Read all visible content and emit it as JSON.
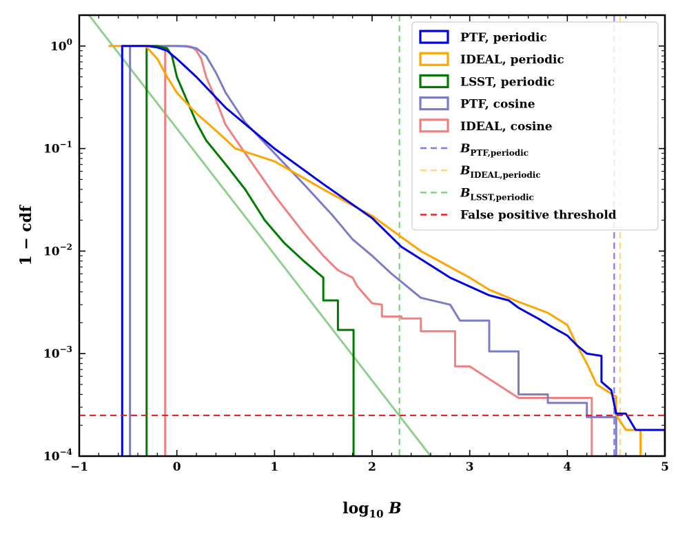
{
  "chart_data": {
    "type": "line",
    "xlabel": "log10 B",
    "ylabel": "1 − cdf",
    "xlim": [
      -1,
      5
    ],
    "ylim": [
      0.0001,
      2
    ],
    "y_scale": "log",
    "x_ticks": [
      -1,
      0,
      1,
      2,
      3,
      4,
      5
    ],
    "x_tick_labels": [
      "−1",
      "0",
      "1",
      "2",
      "3",
      "4",
      "5"
    ],
    "y_ticks": [
      1,
      0.1,
      0.01,
      0.001,
      0.0001
    ],
    "y_tick_labels": [
      {
        "base": "10",
        "exp": "0"
      },
      {
        "base": "10",
        "exp": "−1"
      },
      {
        "base": "10",
        "exp": "−2"
      },
      {
        "base": "10",
        "exp": "−3"
      },
      {
        "base": "10",
        "exp": "−4"
      }
    ],
    "grid": false,
    "legend_position": "top-right",
    "series": [
      {
        "name": "PTF, periodic",
        "color": "#0000e0",
        "style": "solid",
        "x": [
          -0.56,
          -0.56,
          -0.4,
          -0.3,
          -0.2,
          -0.1,
          0.0,
          0.2,
          0.5,
          1.0,
          1.5,
          2.0,
          2.3,
          2.8,
          3.2,
          3.4,
          3.5,
          3.7,
          3.85,
          4.0,
          4.1,
          4.2,
          4.35,
          4.35,
          4.45,
          4.5,
          4.6,
          4.7,
          5.0,
          5.0
        ],
        "y": [
          0.0001,
          1.0,
          1.0,
          1.0,
          0.97,
          0.9,
          0.75,
          0.5,
          0.25,
          0.1,
          0.045,
          0.021,
          0.011,
          0.0055,
          0.0037,
          0.0033,
          0.0028,
          0.0022,
          0.0018,
          0.0015,
          0.0012,
          0.001,
          0.00095,
          0.00053,
          0.00044,
          0.00026,
          0.00026,
          0.00018,
          0.00018,
          0.0001
        ]
      },
      {
        "name": "IDEAL, periodic",
        "color": "#ffa500",
        "style": "solid",
        "x": [
          -0.7,
          -0.5,
          -0.4,
          -0.32,
          -0.2,
          -0.1,
          0.0,
          0.2,
          0.4,
          0.6,
          1.0,
          1.5,
          2.0,
          2.5,
          3.0,
          3.2,
          3.5,
          3.8,
          4.0,
          4.1,
          4.2,
          4.3,
          4.5,
          4.5,
          4.6,
          4.75,
          4.75
        ],
        "y": [
          1.0,
          1.0,
          1.0,
          1.0,
          0.75,
          0.5,
          0.35,
          0.22,
          0.15,
          0.1,
          0.075,
          0.04,
          0.022,
          0.01,
          0.0055,
          0.0042,
          0.0032,
          0.0025,
          0.0019,
          0.0012,
          0.0008,
          0.0005,
          0.00038,
          0.00025,
          0.00018,
          0.00018,
          0.0001
        ]
      },
      {
        "name": "LSST, periodic",
        "color": "#007a00",
        "style": "solid",
        "x": [
          -0.31,
          -0.31,
          -0.2,
          -0.1,
          -0.05,
          0.0,
          0.1,
          0.2,
          0.3,
          0.5,
          0.7,
          0.9,
          1.1,
          1.3,
          1.5,
          1.5,
          1.65,
          1.65,
          1.81,
          1.81
        ],
        "y": [
          0.0001,
          1.0,
          1.0,
          0.95,
          0.8,
          0.5,
          0.3,
          0.18,
          0.12,
          0.07,
          0.04,
          0.02,
          0.012,
          0.008,
          0.0055,
          0.0033,
          0.0033,
          0.0017,
          0.0017,
          0.0001
        ]
      },
      {
        "name": "PTF, cosine",
        "color": "#7b7bc6",
        "style": "solid",
        "x": [
          -0.48,
          -0.48,
          -0.2,
          0.0,
          0.1,
          0.2,
          0.3,
          0.4,
          0.5,
          0.7,
          1.0,
          1.3,
          1.6,
          1.8,
          2.0,
          2.2,
          2.5,
          2.8,
          2.9,
          3.2,
          3.2,
          3.5,
          3.5,
          3.8,
          3.8,
          4.2,
          4.2,
          4.5,
          4.5,
          5.0
        ],
        "y": [
          0.0001,
          1.0,
          1.0,
          1.0,
          0.99,
          0.95,
          0.8,
          0.55,
          0.35,
          0.18,
          0.09,
          0.045,
          0.022,
          0.013,
          0.009,
          0.006,
          0.0035,
          0.003,
          0.0021,
          0.0021,
          0.00105,
          0.00105,
          0.0004,
          0.0004,
          0.00033,
          0.00033,
          0.00024,
          0.00024,
          0.0001,
          0.0001
        ]
      },
      {
        "name": "IDEAL, cosine",
        "color": "#f08080",
        "style": "solid",
        "x": [
          -0.12,
          -0.12,
          0.0,
          0.1,
          0.15,
          0.2,
          0.25,
          0.3,
          0.4,
          0.5,
          0.7,
          1.0,
          1.3,
          1.5,
          1.65,
          1.8,
          1.85,
          2.0,
          2.1,
          2.1,
          2.3,
          2.3,
          2.5,
          2.5,
          2.85,
          2.85,
          3.0,
          3.5,
          4.0,
          4.25,
          4.25
        ],
        "y": [
          0.0001,
          1.0,
          1.0,
          1.0,
          0.98,
          0.9,
          0.75,
          0.5,
          0.3,
          0.17,
          0.09,
          0.035,
          0.015,
          0.009,
          0.0065,
          0.0055,
          0.0045,
          0.0031,
          0.003,
          0.0023,
          0.0023,
          0.0022,
          0.0022,
          0.00165,
          0.00165,
          0.00075,
          0.00075,
          0.00037,
          0.00037,
          0.00037,
          0.0001
        ]
      },
      {
        "name": "False positive threshold",
        "color": "#e41a1c",
        "style": "dashed",
        "x": [
          -1,
          5
        ],
        "y": [
          0.00025,
          0.00025
        ]
      },
      {
        "name": "",
        "color": "#8fd08f",
        "style": "solid",
        "x": [
          -0.9,
          2.6
        ],
        "y": [
          2.0,
          0.0001
        ]
      }
    ],
    "vertical_lines": [
      {
        "name": "PTF",
        "subscript": "PTF,periodic",
        "x": 4.48,
        "color": "#7b7bf0",
        "style": "dashed"
      },
      {
        "name": "IDEAL",
        "subscript": "IDEAL,periodic",
        "x": 4.54,
        "color": "#ffd580",
        "style": "dashed"
      },
      {
        "name": "LSST",
        "subscript": "LSST,periodic",
        "x": 2.28,
        "color": "#7fcf7f",
        "style": "dashed"
      }
    ],
    "legend": [
      {
        "label": "PTF, periodic",
        "color": "#0000e0",
        "kind": "patch"
      },
      {
        "label": "IDEAL, periodic",
        "color": "#ffa500",
        "kind": "patch"
      },
      {
        "label": "LSST, periodic",
        "color": "#007a00",
        "kind": "patch"
      },
      {
        "label": "PTF, cosine",
        "color": "#7b7bc6",
        "kind": "patch"
      },
      {
        "label": "IDEAL, cosine",
        "color": "#f08080",
        "kind": "patch"
      },
      {
        "label": "B",
        "sub": "PTF,periodic",
        "color": "#7b7bf0",
        "kind": "dash"
      },
      {
        "label": "B",
        "sub": "IDEAL,periodic",
        "color": "#ffd580",
        "kind": "dash"
      },
      {
        "label": "B",
        "sub": "LSST,periodic",
        "color": "#7fcf7f",
        "kind": "dash"
      },
      {
        "label": "False positive threshold",
        "color": "#e41a1c",
        "kind": "dash"
      }
    ]
  }
}
